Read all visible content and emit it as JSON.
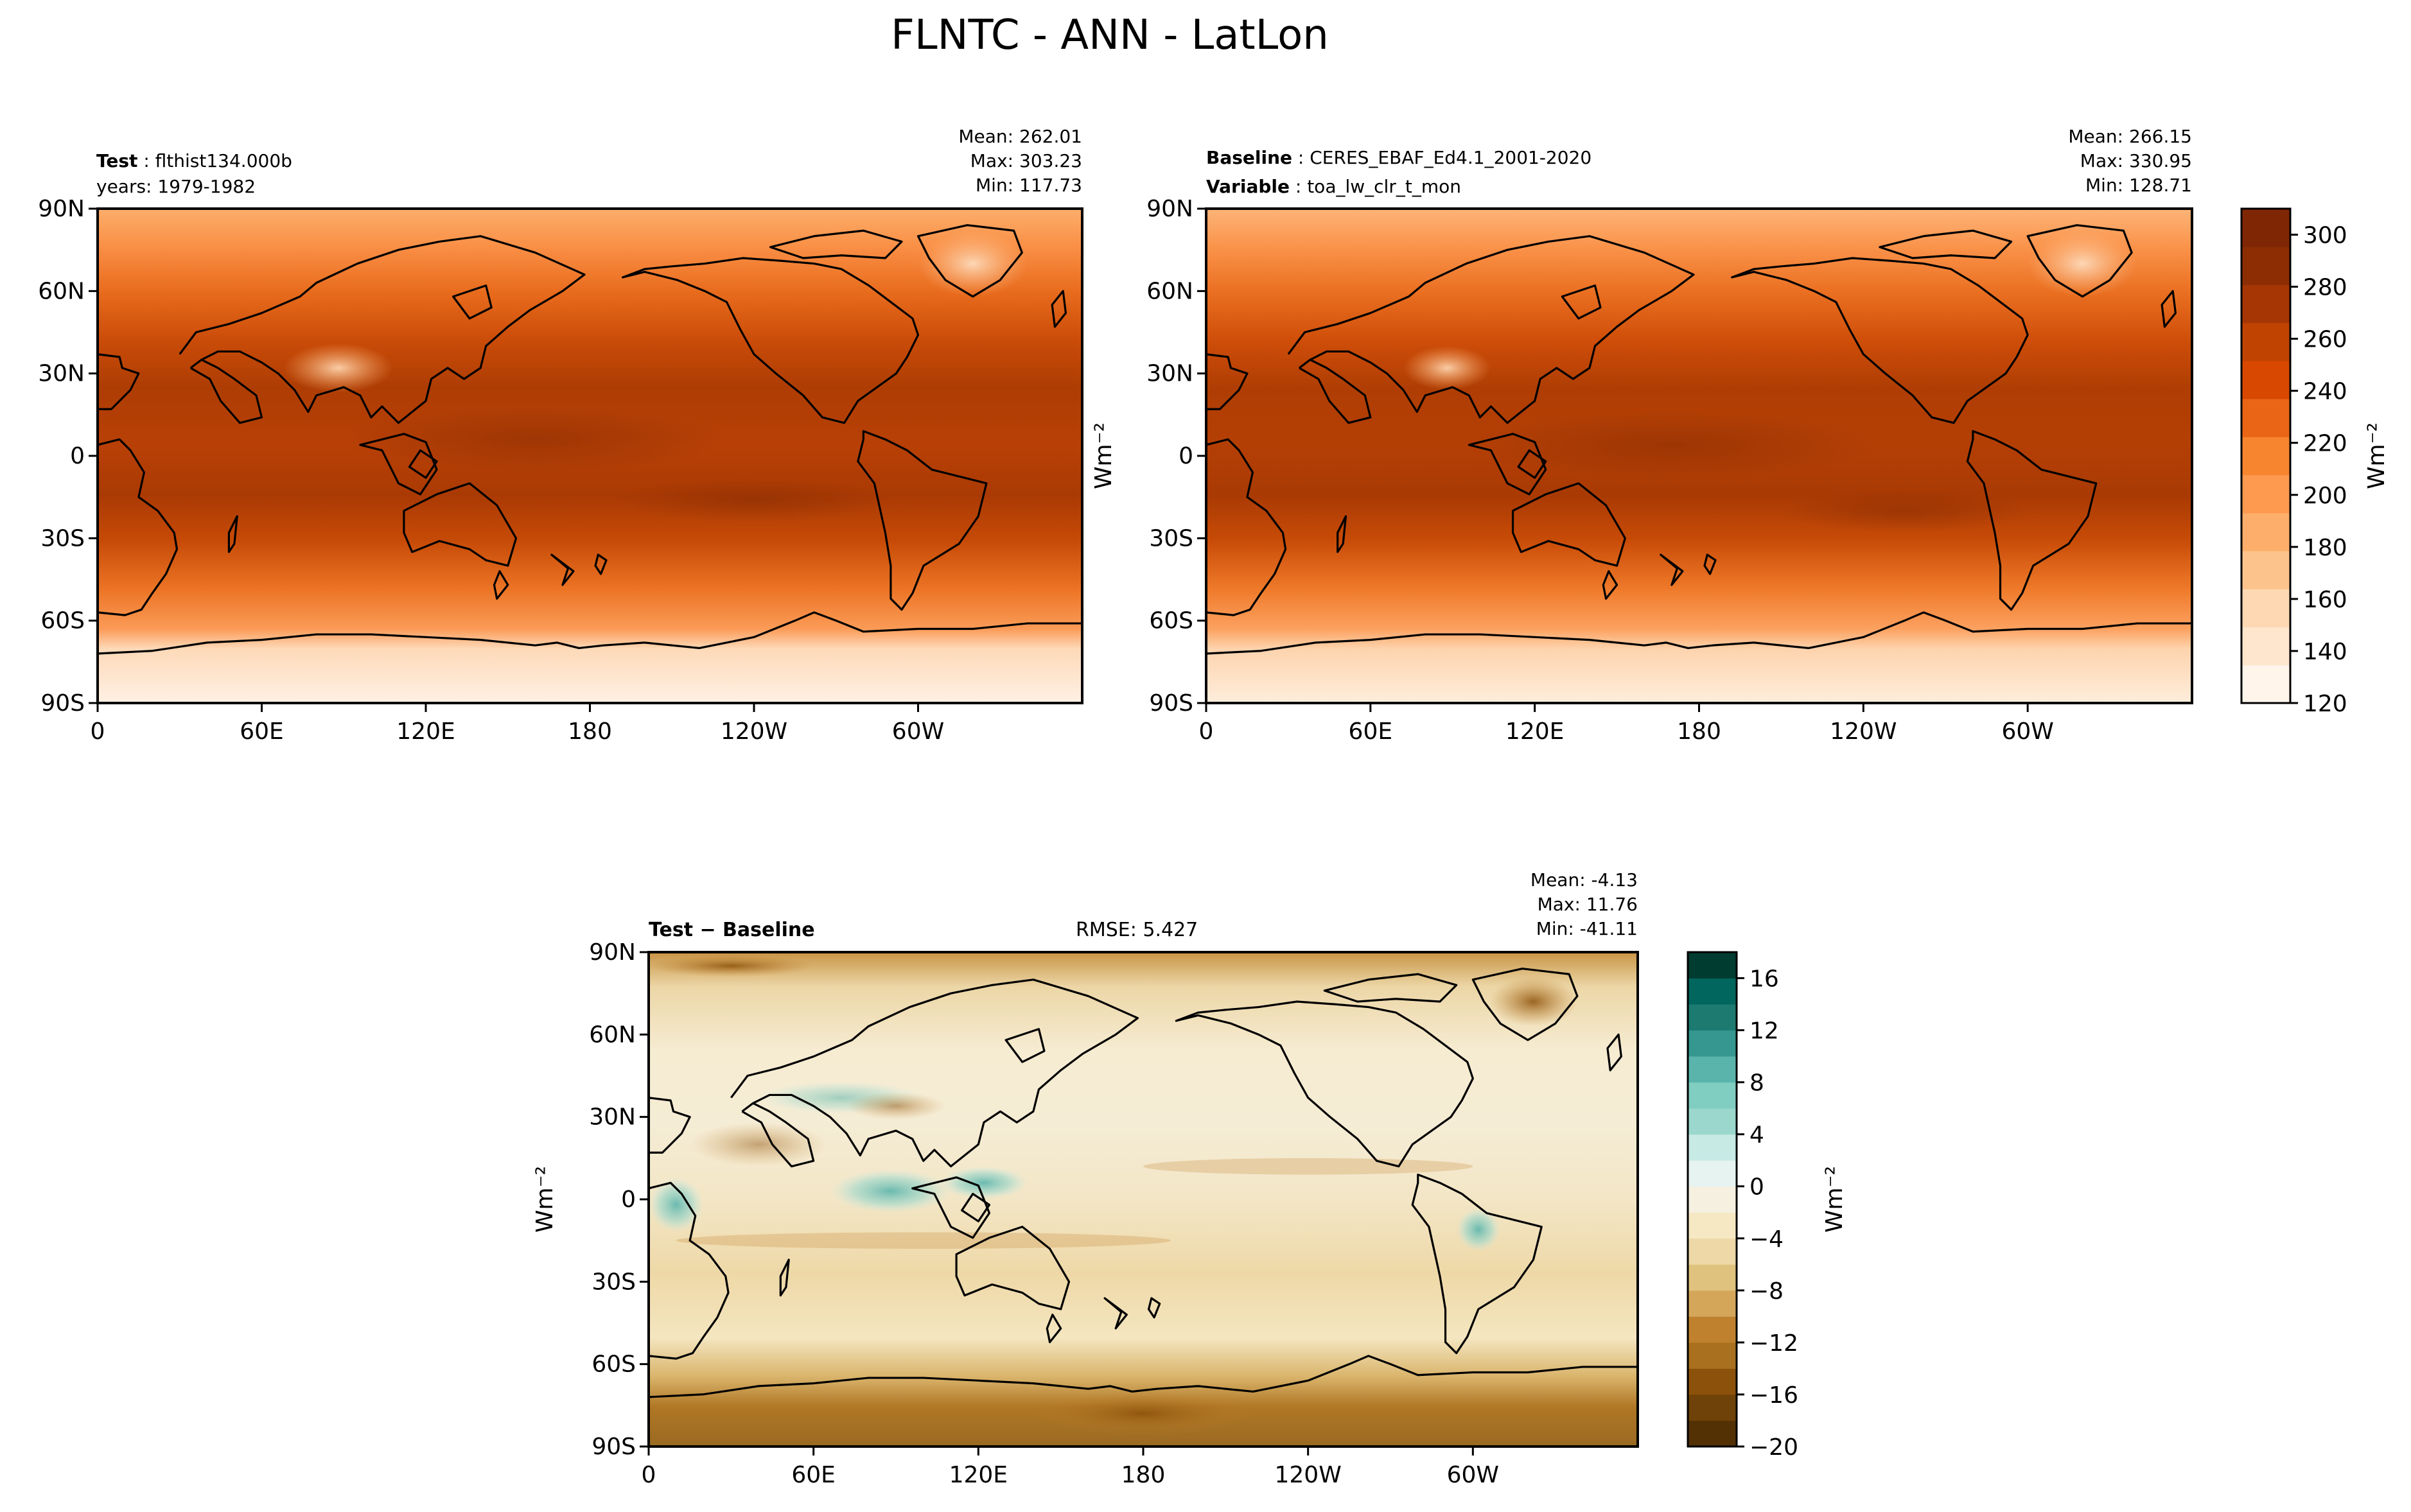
{
  "figure": {
    "title": "FLNTC - ANN - LatLon"
  },
  "panels": [
    {
      "id": "test",
      "label_key": "Test",
      "label_val": "flthist134.000b",
      "line2_key": "",
      "line2_val": "years: 1979-1982",
      "stats": [
        "Mean: 262.01",
        "Max: 303.23",
        "Min: 117.73"
      ],
      "ylabel": ""
    },
    {
      "id": "baseline",
      "label_key": "Baseline",
      "label_val": "CERES_EBAF_Ed4.1_2001-2020",
      "line2_key": "Variable",
      "line2_val": "toa_lw_clr_t_mon",
      "stats": [
        "Mean: 266.15",
        "Max: 330.95",
        "Min: 128.71"
      ],
      "ylabel": "Wm⁻²"
    },
    {
      "id": "diff",
      "label_key": "Test − Baseline",
      "label_val": "",
      "rmse": "RMSE: 5.427",
      "stats": [
        "Mean: -4.13",
        "Max: 11.76",
        "Min: -41.11"
      ],
      "ylabel": "Wm⁻²"
    }
  ],
  "axes": {
    "lat_ticks": [
      "90N",
      "60N",
      "30N",
      "0",
      "30S",
      "60S",
      "90S"
    ],
    "lon_ticks": [
      "0",
      "60E",
      "120E",
      "180",
      "120W",
      "60W"
    ]
  },
  "colorbars": [
    {
      "id": "main",
      "label": "Wm⁻²",
      "ticks": [
        "120",
        "140",
        "160",
        "180",
        "200",
        "220",
        "240",
        "260",
        "280",
        "300"
      ],
      "colors": [
        "#fff5eb",
        "#fee6ce",
        "#fdd8b3",
        "#fdc38d",
        "#fdae6b",
        "#fd9a4f",
        "#f7852f",
        "#ea6616",
        "#d94801",
        "#c04302",
        "#a63603",
        "#8c2d04",
        "#7f2704"
      ]
    },
    {
      "id": "diff",
      "label": "Wm⁻²",
      "ticks": [
        "16",
        "12",
        "8",
        "4",
        "0",
        "−4",
        "−8",
        "−12",
        "−16",
        "−20"
      ],
      "colors": [
        "#543005",
        "#6e4208",
        "#8c510a",
        "#a8701f",
        "#bf812d",
        "#d4a65a",
        "#dfc27d",
        "#eed8a7",
        "#f6e8c3",
        "#f5f0e0",
        "#e6f3f1",
        "#c7eae5",
        "#9bd7cc",
        "#80cdc1",
        "#5ab4ac",
        "#35978f",
        "#1c7a70",
        "#01665e",
        "#003c30"
      ]
    }
  ],
  "chart_data": [
    {
      "type": "heatmap",
      "title": "FLNTC - ANN - LatLon",
      "panel": "Test: flthist134.000b (years: 1979-1982)",
      "units": "Wm⁻²",
      "stats": {
        "mean": 262.01,
        "max": 303.23,
        "min": 117.73
      },
      "value_range": [
        120,
        310
      ],
      "lat_range": [
        -90,
        90
      ],
      "lon_range": [
        0,
        360
      ],
      "zonal_profile": {
        "lat": [
          90,
          75,
          60,
          45,
          30,
          15,
          0,
          -15,
          -30,
          -45,
          -60,
          -75,
          -90
        ],
        "value": [
          190,
          205,
          220,
          245,
          270,
          290,
          282,
          288,
          270,
          245,
          215,
          150,
          135
        ]
      }
    },
    {
      "type": "heatmap",
      "panel": "Baseline: CERES_EBAF_Ed4.1_2001-2020 (Variable: toa_lw_clr_t_mon)",
      "units": "Wm⁻²",
      "stats": {
        "mean": 266.15,
        "max": 330.95,
        "min": 128.71
      },
      "value_range": [
        120,
        310
      ],
      "lat_range": [
        -90,
        90
      ],
      "lon_range": [
        0,
        360
      ],
      "zonal_profile": {
        "lat": [
          90,
          75,
          60,
          45,
          30,
          15,
          0,
          -15,
          -30,
          -45,
          -60,
          -75,
          -90
        ],
        "value": [
          200,
          215,
          230,
          250,
          275,
          292,
          288,
          292,
          275,
          250,
          222,
          160,
          140
        ]
      }
    },
    {
      "type": "heatmap",
      "panel": "Test − Baseline",
      "units": "Wm⁻²",
      "stats": {
        "mean": -4.13,
        "max": 11.76,
        "min": -41.11,
        "rmse": 5.427
      },
      "value_range": [
        -20,
        18
      ],
      "lat_range": [
        -90,
        90
      ],
      "lon_range": [
        0,
        360
      ]
    }
  ]
}
